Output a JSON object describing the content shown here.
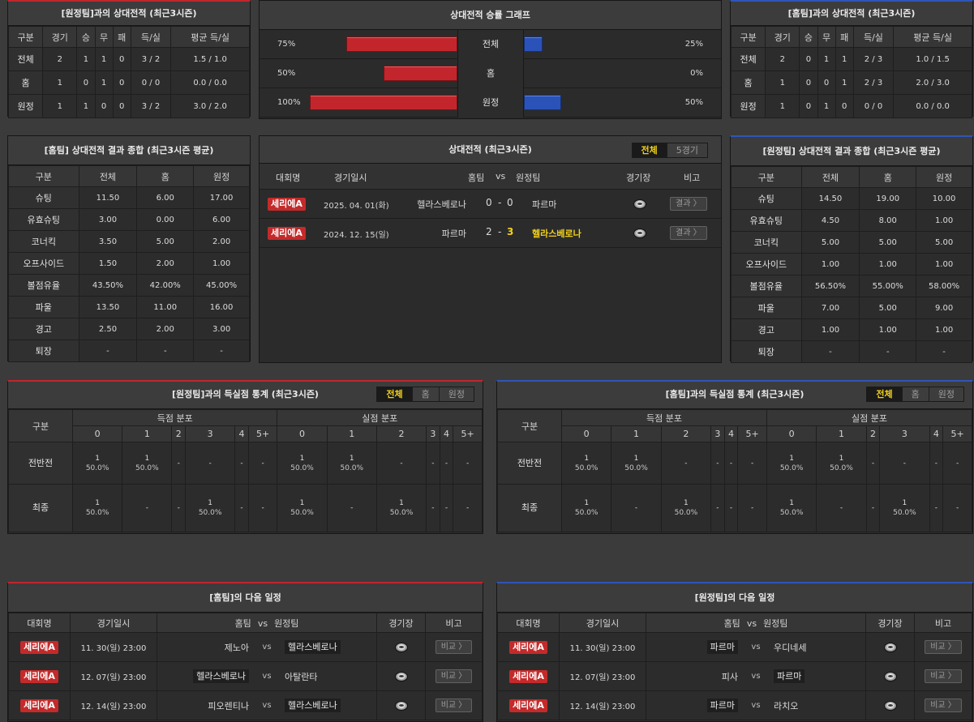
{
  "h2h_away": {
    "title": "[원정팀]과의 상대전적 (최근3시즌)",
    "headers": [
      "구분",
      "경기",
      "승",
      "무",
      "패",
      "득/실",
      "평균 득/실"
    ],
    "rows": [
      [
        "전체",
        "2",
        "1",
        "1",
        "0",
        "3 / 2",
        "1.5 / 1.0"
      ],
      [
        "홈",
        "1",
        "0",
        "1",
        "0",
        "0 / 0",
        "0.0 / 0.0"
      ],
      [
        "원정",
        "1",
        "1",
        "0",
        "0",
        "3 / 2",
        "3.0 / 2.0"
      ]
    ]
  },
  "graph": {
    "title": "상대전적 승률 그래프",
    "rows": [
      {
        "label": "전체",
        "left_pct": "75%",
        "right_pct": "25%",
        "left": 75,
        "right": 25
      },
      {
        "label": "홈",
        "left_pct": "50%",
        "right_pct": "0%",
        "left": 50,
        "right": 0
      },
      {
        "label": "원정",
        "left_pct": "100%",
        "right_pct": "50%",
        "left": 100,
        "right": 50
      }
    ]
  },
  "h2h_home": {
    "title": "[홈팀]과의 상대전적 (최근3시즌)",
    "headers": [
      "구분",
      "경기",
      "승",
      "무",
      "패",
      "득/실",
      "평균 득/실"
    ],
    "rows": [
      [
        "전체",
        "2",
        "0",
        "1",
        "1",
        "2 / 3",
        "1.0 / 1.5"
      ],
      [
        "홈",
        "1",
        "0",
        "0",
        "1",
        "2 / 3",
        "2.0 / 3.0"
      ],
      [
        "원정",
        "1",
        "0",
        "1",
        "0",
        "0 / 0",
        "0.0 / 0.0"
      ]
    ]
  },
  "stat_home": {
    "title": "[홈팀] 상대전적 결과 종합 (최근3시즌 평균)",
    "headers": [
      "구분",
      "전체",
      "홈",
      "원정"
    ],
    "rows": [
      [
        "슈팅",
        "11.50",
        "6.00",
        "17.00"
      ],
      [
        "유효슈팅",
        "3.00",
        "0.00",
        "6.00"
      ],
      [
        "코너킥",
        "3.50",
        "5.00",
        "2.00"
      ],
      [
        "오프사이드",
        "1.50",
        "2.00",
        "1.00"
      ],
      [
        "볼점유율",
        "43.50%",
        "42.00%",
        "45.00%"
      ],
      [
        "파울",
        "13.50",
        "11.00",
        "16.00"
      ],
      [
        "경고",
        "2.50",
        "2.00",
        "3.00"
      ],
      [
        "퇴장",
        "-",
        "-",
        "-"
      ]
    ]
  },
  "h2h_list": {
    "title": "상대전적 (최근3시즌)",
    "toggle": [
      "전체",
      "5경기"
    ],
    "headers": {
      "league": "대회명",
      "date": "경기일시",
      "home": "홈팀",
      "vs": "vs",
      "away": "원정팀",
      "venue": "경기장",
      "note": "비고"
    },
    "matches": [
      {
        "league": "세리에A",
        "date": "2025. 04. 01(화)",
        "home": "헬라스베로나",
        "hs": "0",
        "sep": "-",
        "as": "0",
        "away": "파르마",
        "btn": "결과 〉"
      },
      {
        "league": "세리에A",
        "date": "2024. 12. 15(일)",
        "home": "파르마",
        "hs": "2",
        "sep": "-",
        "as": "3",
        "away": "헬라스베로나",
        "btn": "결과 〉"
      }
    ]
  },
  "stat_away": {
    "title": "[원정팀] 상대전적 결과 종합 (최근3시즌 평균)",
    "headers": [
      "구분",
      "전체",
      "홈",
      "원정"
    ],
    "rows": [
      [
        "슈팅",
        "14.50",
        "19.00",
        "10.00"
      ],
      [
        "유효슈팅",
        "4.50",
        "8.00",
        "1.00"
      ],
      [
        "코너킥",
        "5.00",
        "5.00",
        "5.00"
      ],
      [
        "오프사이드",
        "1.00",
        "1.00",
        "1.00"
      ],
      [
        "볼점유율",
        "56.50%",
        "55.00%",
        "58.00%"
      ],
      [
        "파울",
        "7.00",
        "5.00",
        "9.00"
      ],
      [
        "경고",
        "1.00",
        "1.00",
        "1.00"
      ],
      [
        "퇴장",
        "-",
        "-",
        "-"
      ]
    ]
  },
  "goals_left": {
    "title": "[원정팀]과의 득실점 통계 (최근3시즌)",
    "toggle": [
      "전체",
      "홈",
      "원정"
    ],
    "col_label": "구분",
    "group_score": "득점 분포",
    "group_concede": "실점 분포",
    "cols": [
      "0",
      "1",
      "2",
      "3",
      "4",
      "5+"
    ],
    "rows": [
      {
        "label": "전반전",
        "cells": [
          [
            "1",
            "50.0%"
          ],
          [
            "1",
            "50.0%"
          ],
          [
            "-",
            ""
          ],
          [
            "-",
            ""
          ],
          [
            "-",
            ""
          ],
          [
            "-",
            ""
          ],
          [
            "1",
            "50.0%"
          ],
          [
            "1",
            "50.0%"
          ],
          [
            "-",
            ""
          ],
          [
            "-",
            ""
          ],
          [
            "-",
            ""
          ],
          [
            "-",
            ""
          ]
        ]
      },
      {
        "label": "최종",
        "cells": [
          [
            "1",
            "50.0%"
          ],
          [
            "-",
            ""
          ],
          [
            "-",
            ""
          ],
          [
            "1",
            "50.0%"
          ],
          [
            "-",
            ""
          ],
          [
            "-",
            ""
          ],
          [
            "1",
            "50.0%"
          ],
          [
            "-",
            ""
          ],
          [
            "1",
            "50.0%"
          ],
          [
            "-",
            ""
          ],
          [
            "-",
            ""
          ],
          [
            "-",
            ""
          ]
        ]
      }
    ]
  },
  "goals_right": {
    "title": "[홈팀]과의 득실점 통계 (최근3시즌)",
    "toggle": [
      "전체",
      "홈",
      "원정"
    ],
    "col_label": "구분",
    "group_score": "득점 분포",
    "group_concede": "실점 분포",
    "cols": [
      "0",
      "1",
      "2",
      "3",
      "4",
      "5+"
    ],
    "rows": [
      {
        "label": "전반전",
        "cells": [
          [
            "1",
            "50.0%"
          ],
          [
            "1",
            "50.0%"
          ],
          [
            "-",
            ""
          ],
          [
            "-",
            ""
          ],
          [
            "-",
            ""
          ],
          [
            "-",
            ""
          ],
          [
            "1",
            "50.0%"
          ],
          [
            "1",
            "50.0%"
          ],
          [
            "-",
            ""
          ],
          [
            "-",
            ""
          ],
          [
            "-",
            ""
          ],
          [
            "-",
            ""
          ]
        ]
      },
      {
        "label": "최종",
        "cells": [
          [
            "1",
            "50.0%"
          ],
          [
            "-",
            ""
          ],
          [
            "1",
            "50.0%"
          ],
          [
            "-",
            ""
          ],
          [
            "-",
            ""
          ],
          [
            "-",
            ""
          ],
          [
            "1",
            "50.0%"
          ],
          [
            "-",
            ""
          ],
          [
            "-",
            ""
          ],
          [
            "1",
            "50.0%"
          ],
          [
            "-",
            ""
          ],
          [
            "-",
            ""
          ]
        ]
      }
    ]
  },
  "next_home": {
    "title": "[홈팀]의 다음 일정",
    "headers": {
      "league": "대회명",
      "date": "경기일시",
      "home": "홈팀",
      "vs": "vs",
      "away": "원정팀",
      "venue": "경기장",
      "note": "비고"
    },
    "matches": [
      {
        "league": "세리에A",
        "date": "11. 30(일) 23:00",
        "home": "제노아",
        "vs": "vs",
        "away": "헬라스베로나",
        "boxed": "away",
        "btn": "비교 〉"
      },
      {
        "league": "세리에A",
        "date": "12. 07(일) 23:00",
        "home": "헬라스베로나",
        "vs": "vs",
        "away": "아탈란타",
        "boxed": "home",
        "btn": "비교 〉"
      },
      {
        "league": "세리에A",
        "date": "12. 14(일) 23:00",
        "home": "피오렌티나",
        "vs": "vs",
        "away": "헬라스베로나",
        "boxed": "away",
        "btn": "비교 〉"
      }
    ]
  },
  "next_away": {
    "title": "[원정팀]의 다음 일정",
    "headers": {
      "league": "대회명",
      "date": "경기일시",
      "home": "홈팀",
      "vs": "vs",
      "away": "원정팀",
      "venue": "경기장",
      "note": "비고"
    },
    "matches": [
      {
        "league": "세리에A",
        "date": "11. 30(일) 23:00",
        "home": "파르마",
        "vs": "vs",
        "away": "우디네세",
        "boxed": "home",
        "btn": "비교 〉"
      },
      {
        "league": "세리에A",
        "date": "12. 07(일) 23:00",
        "home": "피사",
        "vs": "vs",
        "away": "파르마",
        "boxed": "away",
        "btn": "비교 〉"
      },
      {
        "league": "세리에A",
        "date": "12. 14(일) 23:00",
        "home": "파르마",
        "vs": "vs",
        "away": "라치오",
        "boxed": "home",
        "btn": "비교 〉"
      }
    ]
  },
  "colors": {
    "home_bar": "#c2262c",
    "away_bar": "#2a52b8",
    "highlight": "#f2d11c",
    "badge": "#c42a2a"
  }
}
